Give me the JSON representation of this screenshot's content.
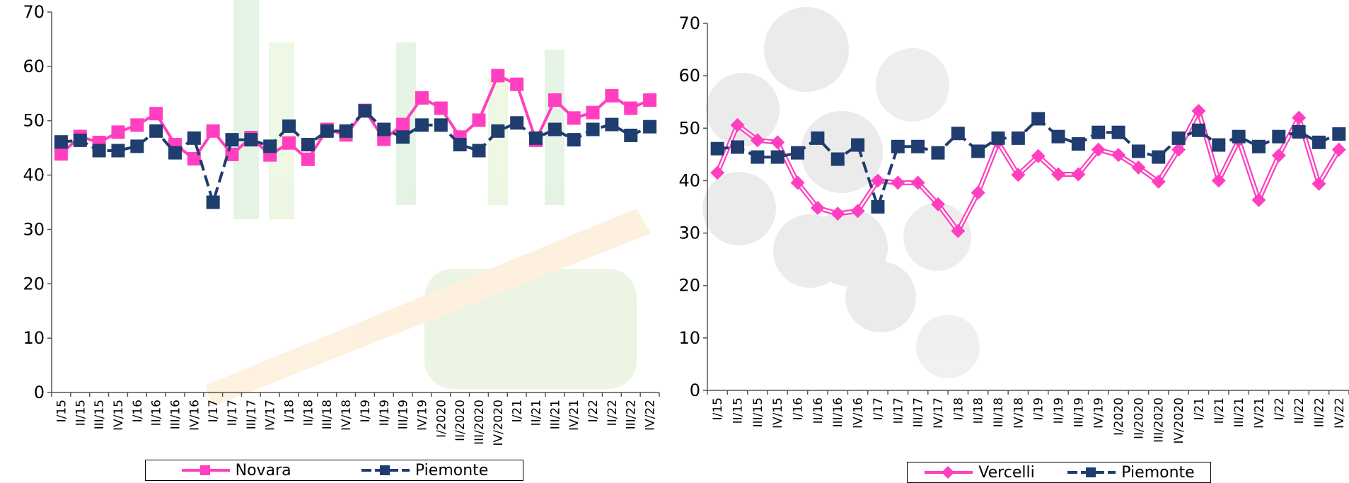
{
  "chart_data": [
    {
      "type": "line",
      "ylim": [
        0,
        70
      ],
      "yticks": [
        0,
        10,
        20,
        30,
        40,
        50,
        60,
        70
      ],
      "grid": false,
      "legend": "bottom",
      "categories": [
        "I/15",
        "II/15",
        "III/15",
        "IV/15",
        "I/16",
        "II/16",
        "III/16",
        "IV/16",
        "I/17",
        "II/17",
        "III/17",
        "IV/17",
        "I/18",
        "II/18",
        "III/18",
        "IV/18",
        "I/19",
        "II/19",
        "III/19",
        "IV/19",
        "I/2020",
        "II/2020",
        "III/2020",
        "IV/2020",
        "I/21",
        "II/21",
        "III/21",
        "IV/21",
        "I/22",
        "II/22",
        "III/22",
        "IV/22"
      ],
      "series": [
        {
          "name": "Novara",
          "color": "#ff3fbf",
          "marker": "square",
          "values": [
            43.9,
            47.1,
            46.0,
            47.9,
            49.2,
            51.3,
            45.6,
            43.0,
            48.1,
            43.8,
            46.9,
            43.7,
            45.9,
            42.9,
            48.4,
            47.4,
            51.9,
            46.6,
            49.3,
            54.2,
            52.3,
            47.0,
            50.1,
            58.3,
            56.7,
            46.4,
            53.8,
            50.5,
            51.5,
            54.6,
            52.3,
            53.8
          ]
        },
        {
          "name": "Piemonte",
          "color": "#1f3d6e",
          "marker": "square",
          "values": [
            46.1,
            46.4,
            44.5,
            44.5,
            45.3,
            48.1,
            44.1,
            46.8,
            35.0,
            46.5,
            46.5,
            45.3,
            49.0,
            45.6,
            48.1,
            48.1,
            51.8,
            48.4,
            47.0,
            49.2,
            49.2,
            45.6,
            44.5,
            48.1,
            49.6,
            46.8,
            48.4,
            46.5,
            48.4,
            49.3,
            47.3,
            48.9
          ]
        }
      ]
    },
    {
      "type": "line",
      "ylim": [
        0,
        70
      ],
      "yticks": [
        0,
        10,
        20,
        30,
        40,
        50,
        60,
        70
      ],
      "grid": false,
      "legend": "bottom",
      "categories": [
        "I/15",
        "II/15",
        "III/15",
        "IV/15",
        "I/16",
        "II/16",
        "III/16",
        "IV/16",
        "I/17",
        "II/17",
        "III/17",
        "IV/17",
        "I/18",
        "II/18",
        "III/18",
        "IV/18",
        "I/19",
        "II/19",
        "III/19",
        "IV/19",
        "I/2020",
        "II/2020",
        "III/2020",
        "IV/2020",
        "I/21",
        "II/21",
        "III/21",
        "IV/21",
        "I/22",
        "II/22",
        "III/22",
        "IV/22"
      ],
      "series": [
        {
          "name": "Vercelli",
          "color": "#ff3fbf",
          "marker": "diamond",
          "values": [
            41.5,
            50.6,
            47.7,
            47.3,
            39.6,
            34.8,
            33.7,
            34.2,
            40.0,
            39.6,
            39.6,
            35.5,
            30.4,
            37.7,
            47.3,
            41.1,
            44.7,
            41.2,
            41.2,
            45.9,
            44.9,
            42.5,
            39.8,
            45.9,
            53.3,
            40.0,
            47.7,
            36.3,
            44.8,
            52.0,
            39.4,
            45.9
          ]
        },
        {
          "name": "Piemonte",
          "color": "#1f3d6e",
          "marker": "square",
          "values": [
            46.1,
            46.4,
            44.5,
            44.5,
            45.3,
            48.1,
            44.1,
            46.8,
            35.0,
            46.5,
            46.5,
            45.3,
            49.0,
            45.6,
            48.1,
            48.1,
            51.8,
            48.4,
            47.0,
            49.2,
            49.2,
            45.6,
            44.5,
            48.1,
            49.6,
            46.8,
            48.4,
            46.5,
            48.4,
            49.3,
            47.3,
            48.9
          ]
        }
      ]
    }
  ]
}
